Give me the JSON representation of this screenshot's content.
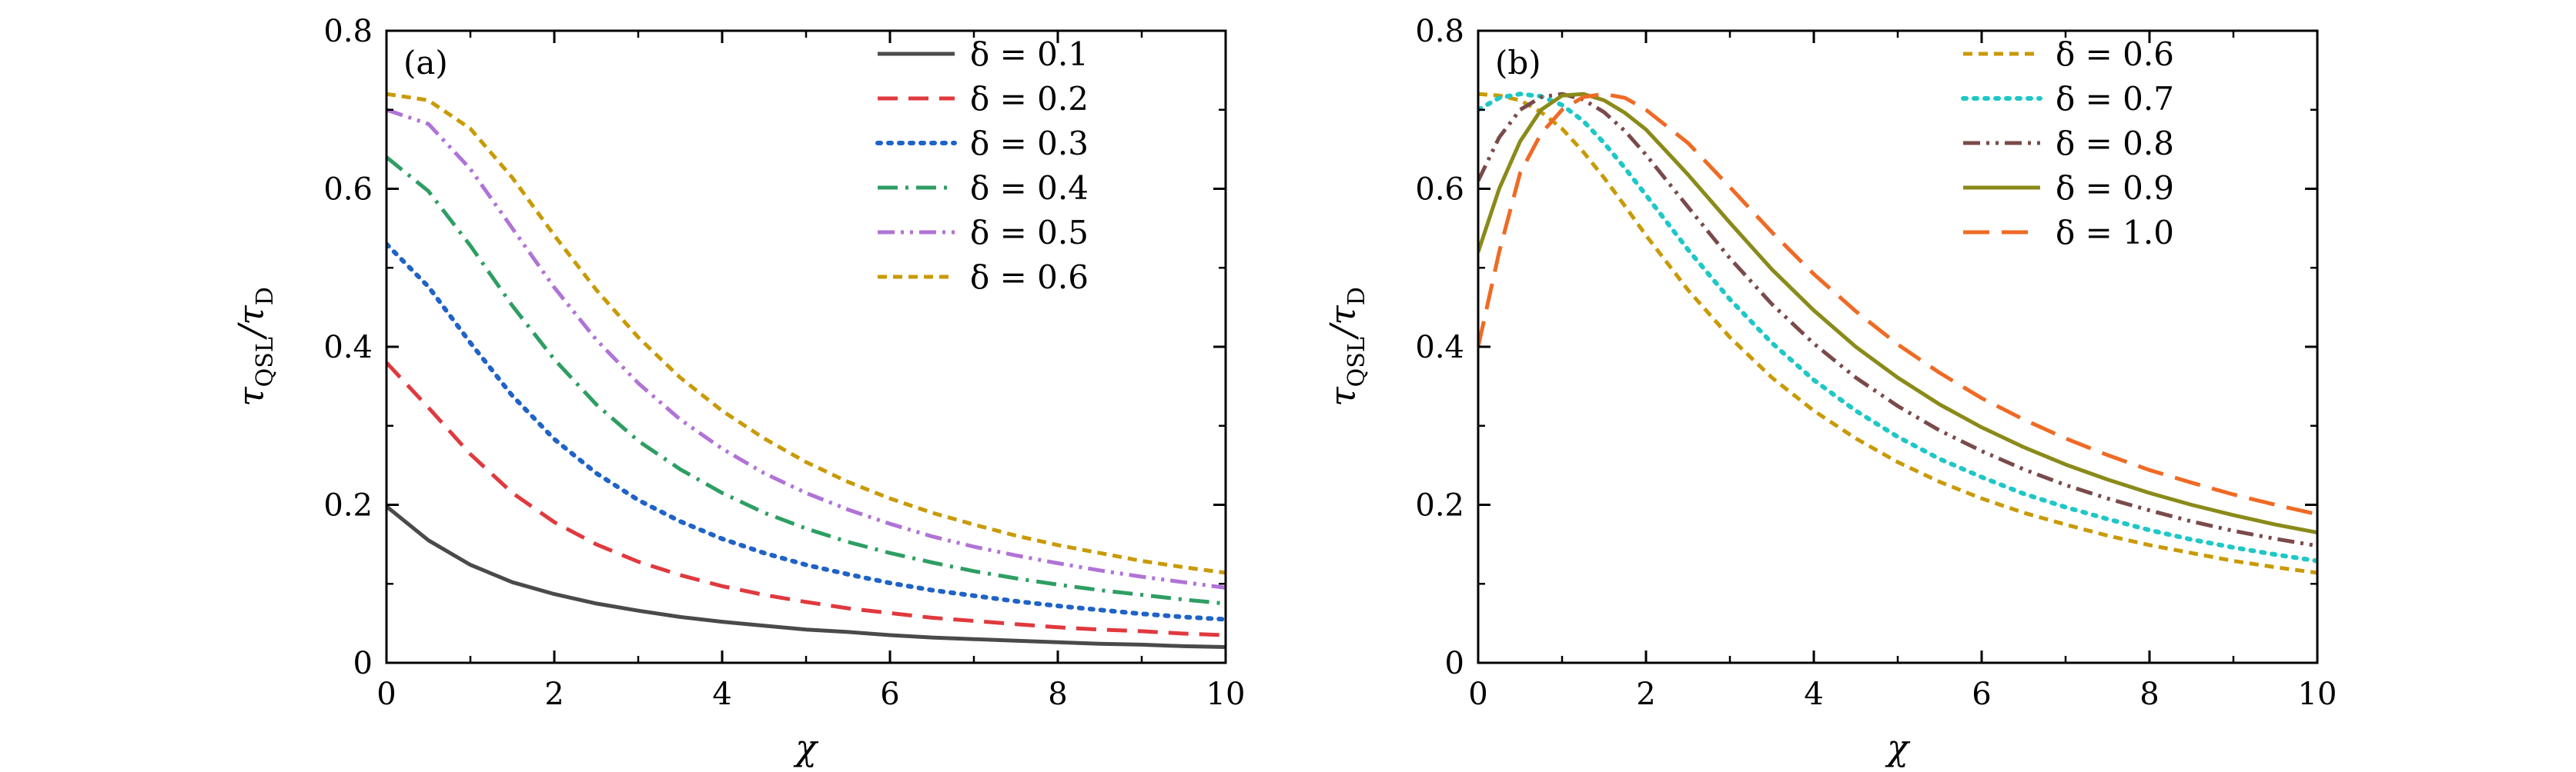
{
  "chart_data": [
    {
      "type": "line",
      "panel_label": "(a)",
      "xlabel": "χ",
      "ylabel": "τQSL/τD",
      "ylabel_main": "τ",
      "ylabel_sub1": "QSL",
      "ylabel_slash": "/τ",
      "ylabel_sub2": "D",
      "xlim": [
        0,
        10
      ],
      "ylim": [
        0,
        0.8
      ],
      "xticks": [
        "0",
        "2",
        "4",
        "6",
        "8",
        "10"
      ],
      "yticks": [
        "0",
        "0.2",
        "0.4",
        "0.6",
        "0.8"
      ],
      "legend_position": "top-right",
      "x": [
        0,
        0.5,
        1,
        1.5,
        2,
        2.5,
        3,
        3.5,
        4,
        4.5,
        5,
        5.5,
        6,
        6.5,
        7,
        7.5,
        8,
        8.5,
        9,
        9.5,
        10
      ],
      "series": [
        {
          "name": "δ = 0.1",
          "color": "#4a4a4a",
          "dash": "solid",
          "values": [
            0.198,
            0.155,
            0.124,
            0.102,
            0.087,
            0.075,
            0.066,
            0.058,
            0.052,
            0.047,
            0.042,
            0.039,
            0.035,
            0.032,
            0.03,
            0.028,
            0.026,
            0.024,
            0.023,
            0.021,
            0.02
          ]
        },
        {
          "name": "δ = 0.2",
          "color": "#e0393e",
          "dash": "dashed",
          "values": [
            0.38,
            0.323,
            0.264,
            0.215,
            0.178,
            0.15,
            0.128,
            0.111,
            0.097,
            0.086,
            0.077,
            0.069,
            0.063,
            0.057,
            0.053,
            0.049,
            0.045,
            0.042,
            0.04,
            0.037,
            0.035
          ]
        },
        {
          "name": "δ = 0.3",
          "color": "#1f63c7",
          "dash": "dotted",
          "values": [
            0.53,
            0.476,
            0.405,
            0.338,
            0.283,
            0.24,
            0.206,
            0.179,
            0.157,
            0.139,
            0.124,
            0.112,
            0.101,
            0.092,
            0.085,
            0.078,
            0.072,
            0.067,
            0.062,
            0.058,
            0.055
          ]
        },
        {
          "name": "δ = 0.4",
          "color": "#2e9e63",
          "dash": "dashdot",
          "values": [
            0.64,
            0.597,
            0.528,
            0.452,
            0.384,
            0.327,
            0.281,
            0.245,
            0.215,
            0.19,
            0.17,
            0.153,
            0.139,
            0.127,
            0.116,
            0.107,
            0.099,
            0.092,
            0.086,
            0.08,
            0.075
          ]
        },
        {
          "name": "δ = 0.5",
          "color": "#b073d6",
          "dash": "dashdotdot",
          "values": [
            0.7,
            0.682,
            0.625,
            0.55,
            0.475,
            0.409,
            0.354,
            0.308,
            0.271,
            0.24,
            0.215,
            0.194,
            0.176,
            0.16,
            0.147,
            0.136,
            0.126,
            0.117,
            0.109,
            0.102,
            0.095
          ]
        },
        {
          "name": "δ = 0.6",
          "color": "#c99a06",
          "dash": "shortdash",
          "values": [
            0.72,
            0.712,
            0.676,
            0.614,
            0.541,
            0.472,
            0.412,
            0.361,
            0.319,
            0.284,
            0.254,
            0.229,
            0.208,
            0.19,
            0.175,
            0.161,
            0.149,
            0.139,
            0.129,
            0.121,
            0.114
          ]
        }
      ]
    },
    {
      "type": "line",
      "panel_label": "(b)",
      "xlabel": "χ",
      "ylabel": "τQSL/τD",
      "ylabel_main": "τ",
      "ylabel_sub1": "QSL",
      "ylabel_slash": "/τ",
      "ylabel_sub2": "D",
      "xlim": [
        0,
        10
      ],
      "ylim": [
        0,
        0.8
      ],
      "xticks": [
        "0",
        "2",
        "4",
        "6",
        "8",
        "10"
      ],
      "yticks": [
        "0",
        "0.2",
        "0.4",
        "0.6",
        "0.8"
      ],
      "legend_position": "top-right",
      "x": [
        0,
        0.25,
        0.5,
        0.75,
        1,
        1.25,
        1.5,
        1.75,
        2,
        2.5,
        3,
        3.5,
        4,
        4.5,
        5,
        5.5,
        6,
        6.5,
        7,
        7.5,
        8,
        8.5,
        9,
        9.5,
        10
      ],
      "series": [
        {
          "name": "δ = 0.6",
          "color": "#c99a06",
          "dash": "shortdash",
          "values": [
            0.72,
            0.718,
            0.712,
            0.697,
            0.676,
            0.647,
            0.614,
            0.578,
            0.541,
            0.472,
            0.412,
            0.361,
            0.319,
            0.284,
            0.254,
            0.229,
            0.208,
            0.19,
            0.175,
            0.161,
            0.149,
            0.139,
            0.129,
            0.121,
            0.114
          ]
        },
        {
          "name": "δ = 0.7",
          "color": "#1fc7c7",
          "dash": "dotted",
          "values": [
            0.7,
            0.715,
            0.72,
            0.717,
            0.706,
            0.686,
            0.658,
            0.626,
            0.592,
            0.523,
            0.46,
            0.405,
            0.358,
            0.319,
            0.286,
            0.258,
            0.235,
            0.214,
            0.197,
            0.182,
            0.168,
            0.156,
            0.146,
            0.137,
            0.129
          ]
        },
        {
          "name": "δ = 0.8",
          "color": "#7a4a4a",
          "dash": "dashdotdot",
          "values": [
            0.61,
            0.665,
            0.7,
            0.716,
            0.72,
            0.713,
            0.697,
            0.673,
            0.643,
            0.577,
            0.512,
            0.454,
            0.404,
            0.361,
            0.325,
            0.294,
            0.268,
            0.245,
            0.225,
            0.208,
            0.193,
            0.179,
            0.167,
            0.157,
            0.148
          ]
        },
        {
          "name": "δ = 0.9",
          "color": "#8a8a1a",
          "dash": "solid",
          "values": [
            0.52,
            0.6,
            0.66,
            0.7,
            0.718,
            0.72,
            0.712,
            0.696,
            0.675,
            0.618,
            0.557,
            0.498,
            0.446,
            0.4,
            0.361,
            0.327,
            0.298,
            0.273,
            0.251,
            0.232,
            0.215,
            0.2,
            0.187,
            0.175,
            0.165
          ]
        },
        {
          "name": "δ = 1.0",
          "color": "#ef6a24",
          "dash": "longdash",
          "values": [
            0.4,
            0.52,
            0.62,
            0.67,
            0.7,
            0.716,
            0.72,
            0.715,
            0.7,
            0.658,
            0.602,
            0.545,
            0.492,
            0.445,
            0.403,
            0.367,
            0.335,
            0.308,
            0.284,
            0.263,
            0.244,
            0.228,
            0.213,
            0.2,
            0.188
          ]
        }
      ]
    }
  ]
}
